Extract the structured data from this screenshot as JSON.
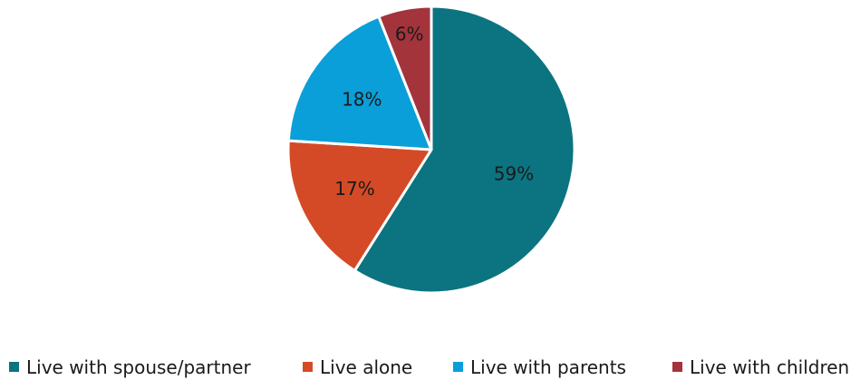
{
  "chart_data": {
    "type": "pie",
    "title": "",
    "legend_position": "bottom",
    "start_angle_deg": 0,
    "direction": "clockwise",
    "slices": [
      {
        "label": "Live with spouse/partner",
        "value": 59,
        "display": "59%",
        "color": "#0b7480"
      },
      {
        "label": "Live alone",
        "value": 17,
        "display": "17%",
        "color": "#d44a26"
      },
      {
        "label": "Live with parents",
        "value": 18,
        "display": "18%",
        "color": "#0a9fd9"
      },
      {
        "label": "Live with children",
        "value": 6,
        "display": "6%",
        "color": "#a3343c"
      }
    ]
  }
}
